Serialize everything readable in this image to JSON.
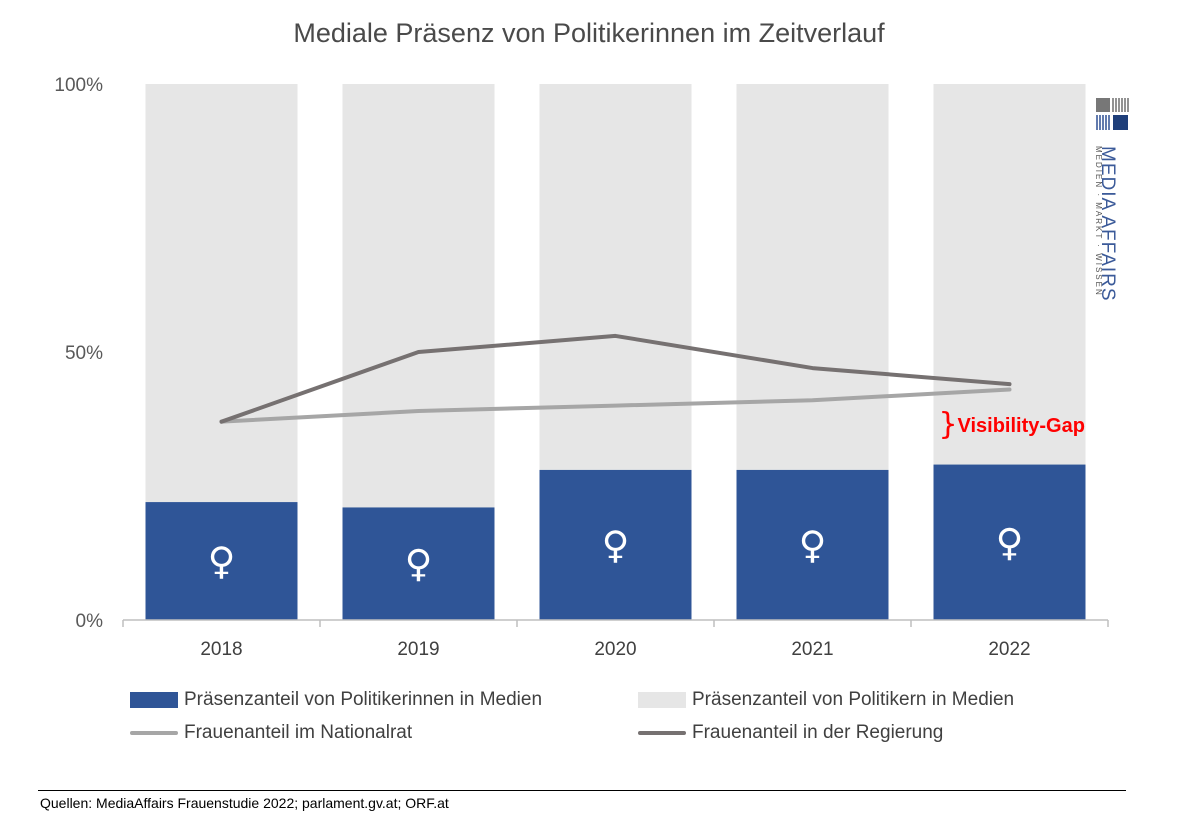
{
  "chart_data": {
    "type": "bar",
    "title": "Mediale Präsenz von Politikerinnen im Zeitverlauf",
    "categories": [
      "2018",
      "2019",
      "2020",
      "2021",
      "2022"
    ],
    "y_ticks": [
      "0%",
      "50%",
      "100%"
    ],
    "ylim": [
      0,
      100
    ],
    "grid": false,
    "series": [
      {
        "name": "Präsenzanteil von Politikerinnen in Medien",
        "type": "bar",
        "color": "#2f5597",
        "values": [
          22,
          21,
          28,
          28,
          29
        ]
      },
      {
        "name": "Präsenzanteil von Politikern in Medien",
        "type": "bar",
        "color": "#e6e6e6",
        "values": [
          78,
          79,
          72,
          72,
          71
        ]
      },
      {
        "name": "Frauenanteil im Nationalrat",
        "type": "line",
        "color": "#a6a6a6",
        "values": [
          37,
          39,
          40,
          41,
          43
        ]
      },
      {
        "name": "Frauenanteil in der Regierung",
        "type": "line",
        "color": "#767171",
        "values": [
          37,
          50,
          53,
          47,
          44
        ]
      }
    ],
    "bar_symbol": "♀",
    "annotation": {
      "text": "Visibility-Gap",
      "brace": "}",
      "color": "#ff0000",
      "category": "2022"
    },
    "legend_position": "bottom"
  },
  "logo": {
    "name": "MEDIA AFFAIRS",
    "tagline": "MEDIEN · MARKT · WISSEN"
  },
  "source": "Quellen: MediaAffairs Frauenstudie 2022; parlament.gv.at; ORF.at"
}
